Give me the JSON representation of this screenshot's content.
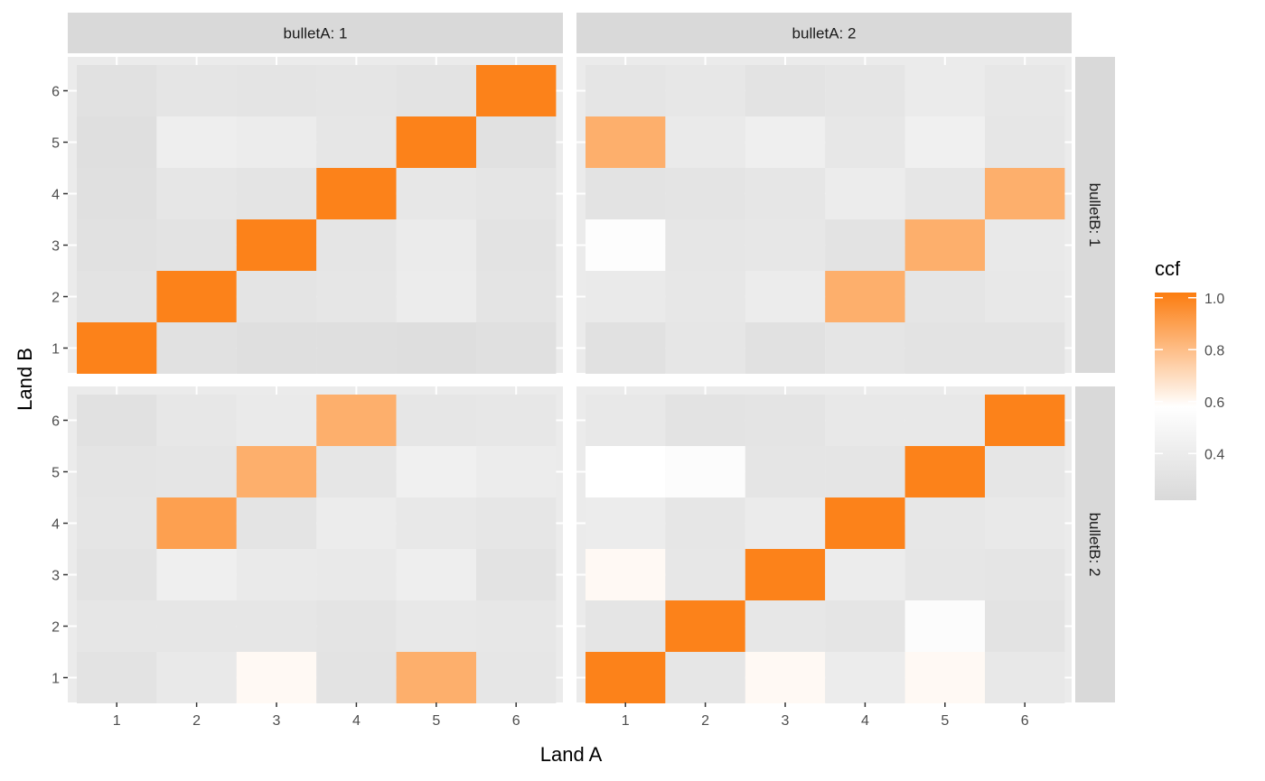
{
  "chart_data": {
    "type": "heatmap",
    "title": "",
    "xlabel": "Land A",
    "ylabel": "Land B",
    "x_categories": [
      "1",
      "2",
      "3",
      "4",
      "5",
      "6"
    ],
    "y_categories": [
      "1",
      "2",
      "3",
      "4",
      "5",
      "6"
    ],
    "facet_columns": [
      {
        "label": "bulletA: 1"
      },
      {
        "label": "bulletA: 2"
      }
    ],
    "facet_rows": [
      {
        "label": "bulletB: 1"
      },
      {
        "label": "bulletB: 2"
      }
    ],
    "panels": [
      {
        "bulletA": "1",
        "bulletB": "1",
        "values": [
          [
            1.0,
            0.3,
            0.28,
            0.28,
            0.27,
            0.29
          ],
          [
            0.31,
            1.0,
            0.32,
            0.34,
            0.4,
            0.32
          ],
          [
            0.3,
            0.31,
            1.0,
            0.33,
            0.39,
            0.31
          ],
          [
            0.29,
            0.34,
            0.32,
            1.0,
            0.35,
            0.33
          ],
          [
            0.28,
            0.42,
            0.4,
            0.34,
            1.0,
            0.3
          ],
          [
            0.3,
            0.33,
            0.32,
            0.33,
            0.31,
            1.0
          ]
        ]
      },
      {
        "bulletA": "2",
        "bulletB": "1",
        "values": [
          [
            0.3,
            0.34,
            0.3,
            0.33,
            0.31,
            0.31
          ],
          [
            0.38,
            0.35,
            0.4,
            0.85,
            0.33,
            0.36
          ],
          [
            0.56,
            0.34,
            0.35,
            0.31,
            0.85,
            0.37
          ],
          [
            0.31,
            0.32,
            0.34,
            0.4,
            0.34,
            0.85
          ],
          [
            0.85,
            0.38,
            0.43,
            0.35,
            0.44,
            0.34
          ],
          [
            0.33,
            0.35,
            0.31,
            0.33,
            0.39,
            0.35
          ]
        ]
      },
      {
        "bulletA": "1",
        "bulletB": "2",
        "values": [
          [
            0.31,
            0.37,
            0.6,
            0.31,
            0.85,
            0.34
          ],
          [
            0.34,
            0.34,
            0.34,
            0.32,
            0.36,
            0.35
          ],
          [
            0.31,
            0.43,
            0.38,
            0.37,
            0.42,
            0.31
          ],
          [
            0.33,
            0.9,
            0.32,
            0.4,
            0.36,
            0.34
          ],
          [
            0.32,
            0.33,
            0.85,
            0.34,
            0.44,
            0.4
          ],
          [
            0.3,
            0.35,
            0.38,
            0.85,
            0.34,
            0.35
          ]
        ]
      },
      {
        "bulletA": "2",
        "bulletB": "2",
        "values": [
          [
            1.0,
            0.34,
            0.6,
            0.4,
            0.6,
            0.36
          ],
          [
            0.33,
            1.0,
            0.35,
            0.33,
            0.55,
            0.31
          ],
          [
            0.6,
            0.35,
            1.0,
            0.4,
            0.34,
            0.33
          ],
          [
            0.4,
            0.34,
            0.39,
            1.0,
            0.35,
            0.37
          ],
          [
            0.58,
            0.55,
            0.33,
            0.33,
            1.0,
            0.34
          ],
          [
            0.36,
            0.31,
            0.32,
            0.36,
            0.36,
            1.0
          ]
        ]
      }
    ],
    "legend": {
      "title": "ccf",
      "placement": "right",
      "labels": [
        "1.0",
        "0.8",
        "0.6",
        "0.4"
      ],
      "label_values": [
        1.0,
        0.8,
        0.6,
        0.4
      ],
      "range": [
        0.22,
        1.02
      ],
      "gradient": [
        {
          "value": 0.22,
          "color": "#D9D9D9"
        },
        {
          "value": 0.58,
          "color": "#FFFFFF"
        },
        {
          "value": 1.02,
          "color": "#FC7C0F"
        }
      ]
    },
    "grid": true,
    "colors": {
      "panel_background": "#EBEBEB",
      "strip_background": "#D9D9D9",
      "gridline": "#FFFFFF",
      "accent": "#FC7C0F"
    }
  }
}
